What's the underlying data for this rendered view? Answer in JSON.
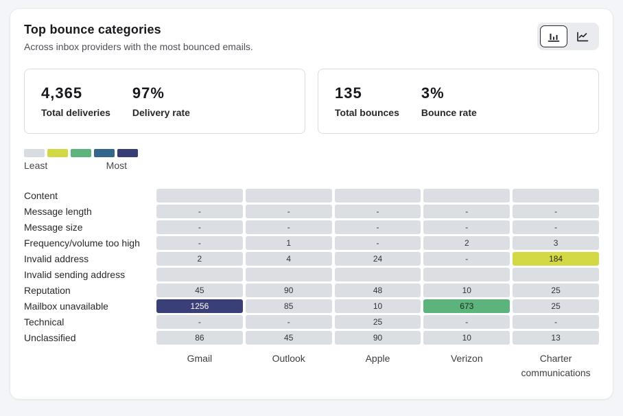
{
  "card": {
    "title": "Top bounce categories",
    "subtitle": "Across inbox providers with the most bounced emails."
  },
  "toolbar": {
    "icons": [
      "bar-chart-icon",
      "line-chart-icon"
    ],
    "active_view": "bar-chart"
  },
  "summary_cards": [
    {
      "stats": [
        {
          "value": "4,365",
          "label": "Total deliveries"
        },
        {
          "value": "97%",
          "label": "Delivery rate"
        }
      ]
    },
    {
      "stats": [
        {
          "value": "135",
          "label": "Total bounces"
        },
        {
          "value": "3%",
          "label": "Bounce rate"
        }
      ]
    }
  ],
  "legend": {
    "least": "Least",
    "most": "Most",
    "swatches": [
      "#d9dde1",
      "#d3d845",
      "#5cb47c",
      "#33658c",
      "#383d75"
    ]
  },
  "chart_data": {
    "type": "heatmap",
    "title": "Top bounce categories",
    "columns": [
      "Gmail",
      "Outlook",
      "Apple",
      "Verizon",
      "Charter communications"
    ],
    "palette": {
      "default": "#dbdfe3",
      "yellow": "#d3d845",
      "green": "#5cb47c",
      "navy": "#3b3f78"
    },
    "rows": [
      {
        "label": "Content",
        "values": [
          "",
          "",
          "",
          "",
          ""
        ],
        "colors": [
          "",
          "",
          "",
          "",
          ""
        ]
      },
      {
        "label": "Message length",
        "values": [
          "-",
          "-",
          "-",
          "-",
          "-"
        ],
        "colors": [
          "",
          "",
          "",
          "",
          ""
        ]
      },
      {
        "label": "Message size",
        "values": [
          "-",
          "-",
          "-",
          "-",
          "-"
        ],
        "colors": [
          "",
          "",
          "",
          "",
          ""
        ]
      },
      {
        "label": "Frequency/volume too high",
        "values": [
          "-",
          "1",
          "-",
          "2",
          "3"
        ],
        "colors": [
          "",
          "",
          "",
          "",
          ""
        ]
      },
      {
        "label": "Invalid address",
        "values": [
          "2",
          "4",
          "24",
          "-",
          "184"
        ],
        "colors": [
          "",
          "",
          "",
          "",
          "yellow"
        ]
      },
      {
        "label": "Invalid sending address",
        "values": [
          "",
          "",
          "",
          "",
          ""
        ],
        "colors": [
          "",
          "",
          "",
          "",
          ""
        ]
      },
      {
        "label": "Reputation",
        "values": [
          "45",
          "90",
          "48",
          "10",
          "25"
        ],
        "colors": [
          "",
          "",
          "",
          "",
          ""
        ]
      },
      {
        "label": "Mailbox unavailable",
        "values": [
          "1256",
          "85",
          "10",
          "673",
          "25"
        ],
        "colors": [
          "navy",
          "",
          "",
          "green",
          ""
        ]
      },
      {
        "label": "Technical",
        "values": [
          "-",
          "-",
          "25",
          "-",
          "-"
        ],
        "colors": [
          "",
          "",
          "",
          "",
          ""
        ]
      },
      {
        "label": "Unclassified",
        "values": [
          "86",
          "45",
          "90",
          "10",
          "13"
        ],
        "colors": [
          "",
          "",
          "",
          "",
          ""
        ]
      }
    ]
  }
}
